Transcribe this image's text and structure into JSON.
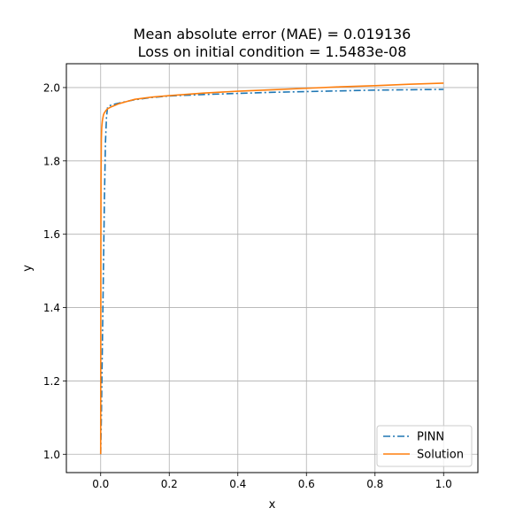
{
  "chart_data": {
    "type": "line",
    "title": "Mean absolute error (MAE) = 0.019136",
    "subtitle": "Loss on initial condition = 1.5483e-08",
    "xlabel": "x",
    "ylabel": "y",
    "xlim": [
      -0.1,
      1.1
    ],
    "ylim": [
      0.95,
      2.065
    ],
    "xticks": [
      0.0,
      0.2,
      0.4,
      0.6,
      0.8,
      1.0
    ],
    "xtick_labels": [
      "0.0",
      "0.2",
      "0.4",
      "0.6",
      "0.8",
      "1.0"
    ],
    "yticks": [
      1.0,
      1.2,
      1.4,
      1.6,
      1.8,
      2.0
    ],
    "ytick_labels": [
      "1.0",
      "1.2",
      "1.4",
      "1.6",
      "1.8",
      "2.0"
    ],
    "grid": true,
    "legend_position": "bottom-right",
    "series": [
      {
        "name": "PINN",
        "color": "#1f77b4",
        "dash": "dash-dot",
        "x": [
          0.0,
          0.002,
          0.005,
          0.008,
          0.011,
          0.014,
          0.017,
          0.02,
          0.025,
          0.03,
          0.05,
          0.08,
          0.1,
          0.15,
          0.2,
          0.3,
          0.4,
          0.5,
          0.6,
          0.7,
          0.8,
          0.9,
          1.0
        ],
        "y": [
          1.0,
          1.1,
          1.3,
          1.5,
          1.7,
          1.85,
          1.92,
          1.945,
          1.95,
          1.952,
          1.957,
          1.963,
          1.967,
          1.973,
          1.977,
          1.981,
          1.984,
          1.987,
          1.989,
          1.991,
          1.993,
          1.994,
          1.995
        ]
      },
      {
        "name": "Solution",
        "color": "#ff7f0e",
        "dash": "solid",
        "x": [
          0.0,
          0.0005,
          0.001,
          0.002,
          0.003,
          0.005,
          0.008,
          0.01,
          0.015,
          0.02,
          0.03,
          0.05,
          0.08,
          0.1,
          0.15,
          0.2,
          0.3,
          0.4,
          0.5,
          0.6,
          0.7,
          0.8,
          0.9,
          1.0
        ],
        "y": [
          1.0,
          1.5,
          1.75,
          1.86,
          1.89,
          1.91,
          1.925,
          1.93,
          1.937,
          1.942,
          1.947,
          1.955,
          1.963,
          1.968,
          1.974,
          1.978,
          1.985,
          1.99,
          1.994,
          1.998,
          2.002,
          2.005,
          2.009,
          2.012
        ]
      }
    ]
  }
}
